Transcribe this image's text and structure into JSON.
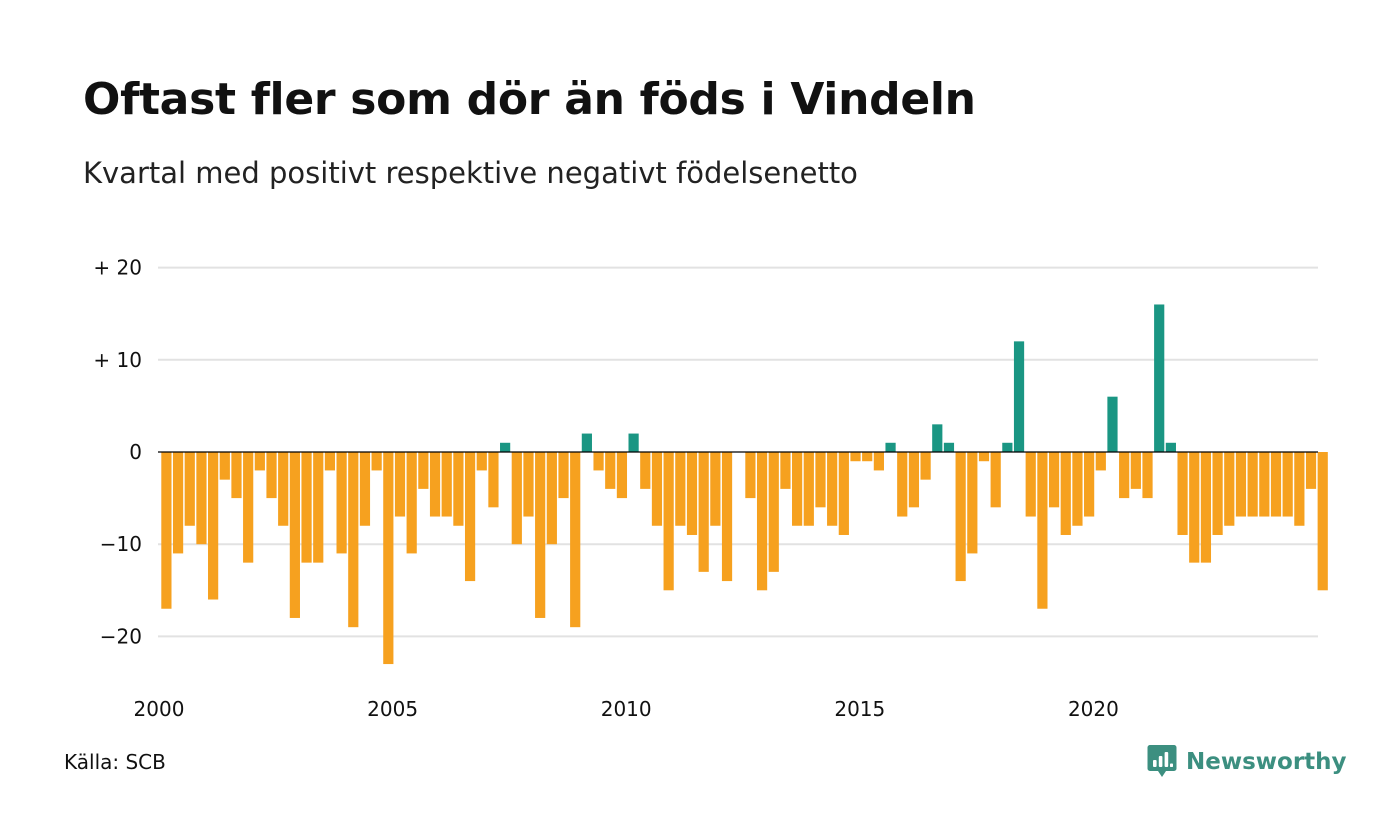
{
  "title": "Oftast fler som dör än föds i Vindeln",
  "subtitle": "Kvartal med positivt respektive negativt födelsenetto",
  "source": "Källa: SCB",
  "brand": {
    "name": "Newsworthy",
    "icon": "newsworthy-chat-bar-icon",
    "color": "#3c8f80"
  },
  "colors": {
    "positive": "#1a9683",
    "negative": "#f6a11f",
    "grid": "#e2e2e2",
    "zero_line": "#000000"
  },
  "chart_data": {
    "type": "bar",
    "title": "Oftast fler som dör än föds i Vindeln",
    "subtitle": "Kvartal med positivt respektive negativt födelsenetto",
    "xlabel": "",
    "ylabel": "",
    "x_ticks": [
      "2000",
      "2005",
      "2010",
      "2015",
      "2020"
    ],
    "y_ticks": [
      {
        "value": 20,
        "label": "+ 20"
      },
      {
        "value": 10,
        "label": "+ 10"
      },
      {
        "value": 0,
        "label": "0"
      },
      {
        "value": -10,
        "label": "−10"
      },
      {
        "value": -20,
        "label": "−20"
      }
    ],
    "ylim": [
      -25,
      22
    ],
    "grid": true,
    "legend": "none",
    "start_period": "2000 Q1",
    "frequency": "quarterly",
    "values": [
      -17,
      -11,
      -8,
      -10,
      -16,
      -3,
      -5,
      -12,
      -2,
      -5,
      -8,
      -18,
      -12,
      -12,
      -2,
      -11,
      -19,
      -8,
      -2,
      -23,
      -7,
      -11,
      -4,
      -7,
      -7,
      -8,
      -14,
      -2,
      -6,
      1,
      -10,
      -7,
      -18,
      -10,
      -5,
      -19,
      2,
      -2,
      -4,
      -5,
      2,
      -4,
      -8,
      -15,
      -8,
      -9,
      -13,
      -8,
      -14,
      0,
      -5,
      -15,
      -13,
      -4,
      -8,
      -8,
      -6,
      -8,
      -9,
      -1,
      -1,
      -2,
      1,
      -7,
      -6,
      -3,
      3,
      1,
      -14,
      -11,
      -1,
      -6,
      1,
      12,
      -7,
      -17,
      -6,
      -9,
      -8,
      -7,
      -2,
      6,
      -5,
      -4,
      -5,
      16,
      1,
      -9,
      -12,
      -12,
      -9,
      -8,
      -7,
      -7,
      -7,
      -7,
      -7,
      -8,
      -4,
      -15
    ]
  }
}
